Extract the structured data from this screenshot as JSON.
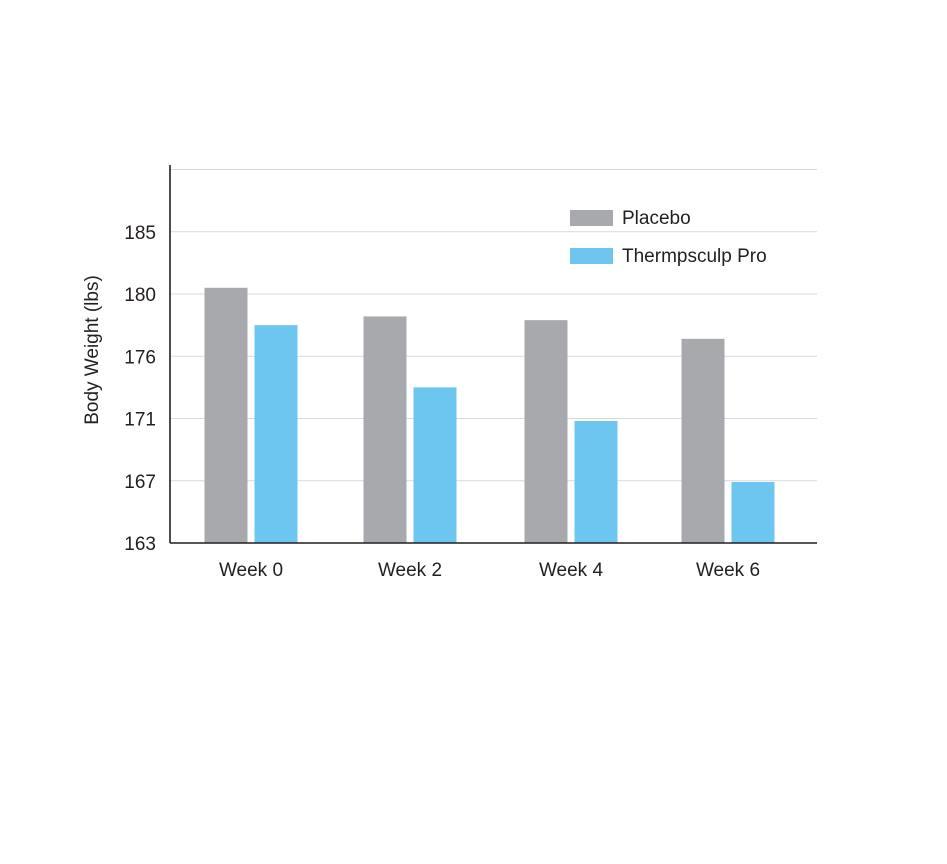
{
  "chart_data": {
    "type": "bar",
    "title": "",
    "xlabel": "",
    "ylabel": "Body Weight (lbs)",
    "categories": [
      "Week 0",
      "Week 2",
      "Week 4",
      "Week 6"
    ],
    "y_tick_labels": [
      "163",
      "167",
      "171",
      "176",
      "180",
      "185"
    ],
    "y_tick_levels": [
      0,
      1,
      2,
      3,
      4,
      5
    ],
    "y_top_level": 6,
    "series": [
      {
        "name": "Placebo",
        "color": "#a7a9ac",
        "level_values": [
          4.1,
          3.64,
          3.58,
          3.28
        ]
      },
      {
        "name": "Thermpsculp Pro",
        "color": "#6dc6ef",
        "level_values": [
          3.5,
          2.5,
          1.96,
          0.98
        ]
      }
    ],
    "grid": true,
    "legend_position": "top-right",
    "note": "The y-axis tick labels (163,167,171,176,180,185) are evenly spaced; bar heights are expressed on that even tick scale (level 0 = 163 ... level 5 = 185)."
  }
}
